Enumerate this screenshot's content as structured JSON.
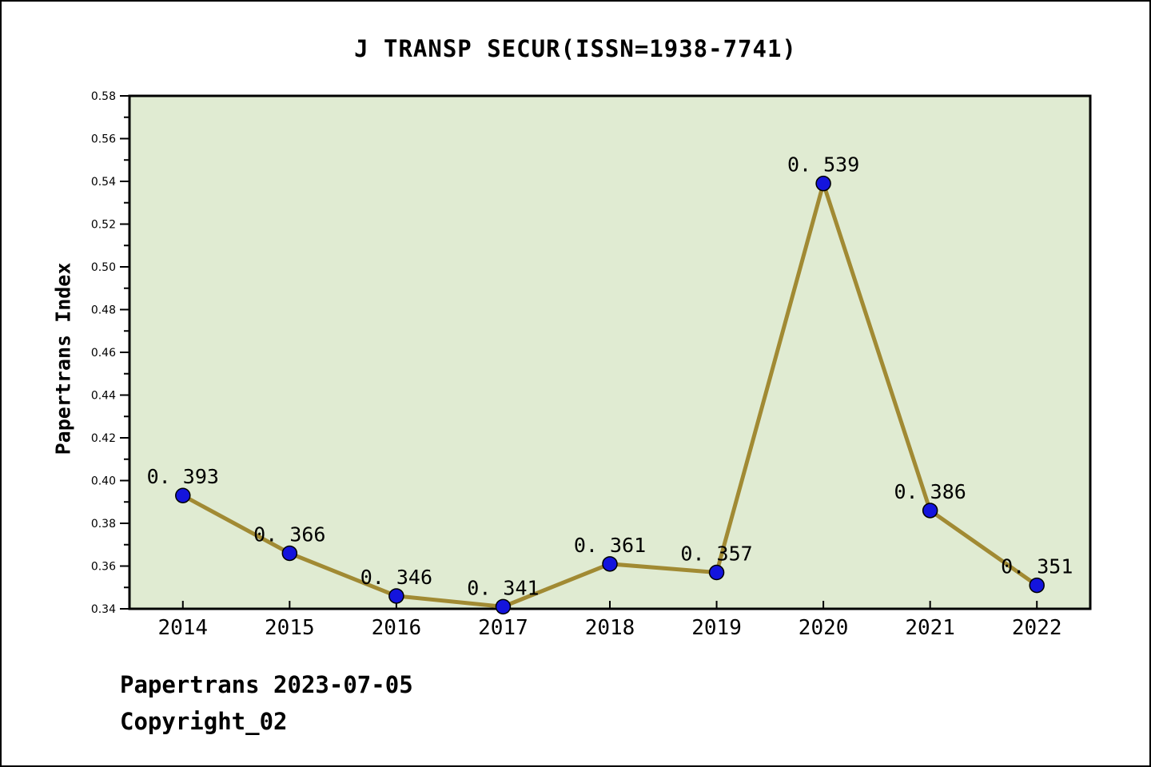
{
  "title": "J TRANSP SECUR(ISSN=1938-7741)",
  "y_axis_title": "Papertrans Index",
  "footer": {
    "line1": "Papertrans 2023-07-05",
    "line2": "Copyright_02"
  },
  "chart_data": {
    "type": "line",
    "title": "J TRANSP SECUR(ISSN=1938-7741)",
    "xlabel": "",
    "ylabel": "Papertrans Index",
    "categories": [
      "2014",
      "2015",
      "2016",
      "2017",
      "2018",
      "2019",
      "2020",
      "2021",
      "2022"
    ],
    "values": [
      0.393,
      0.366,
      0.346,
      0.341,
      0.361,
      0.357,
      0.539,
      0.386,
      0.351
    ],
    "point_labels": [
      "0. 393",
      "0. 366",
      "0. 346",
      "0. 341",
      "0. 361",
      "0. 357",
      "0. 539",
      "0. 386",
      "0. 351"
    ],
    "ylim": [
      0.34,
      0.58
    ],
    "y_major_step": 0.02,
    "y_minor_step": 0.01,
    "y_tick_labels": [
      "0.34",
      "0.36",
      "0.38",
      "0.40",
      "0.42",
      "0.44",
      "0.46",
      "0.48",
      "0.50",
      "0.52",
      "0.54",
      "0.56",
      "0.58"
    ],
    "grid": false,
    "legend": null,
    "colors": {
      "line": "#a18a33",
      "marker_fill": "#1414dd",
      "marker_edge": "#000000",
      "plot_background": "#e0ebd2",
      "axis": "#000000",
      "text": "#000000",
      "page_background": "#ffffff"
    }
  }
}
